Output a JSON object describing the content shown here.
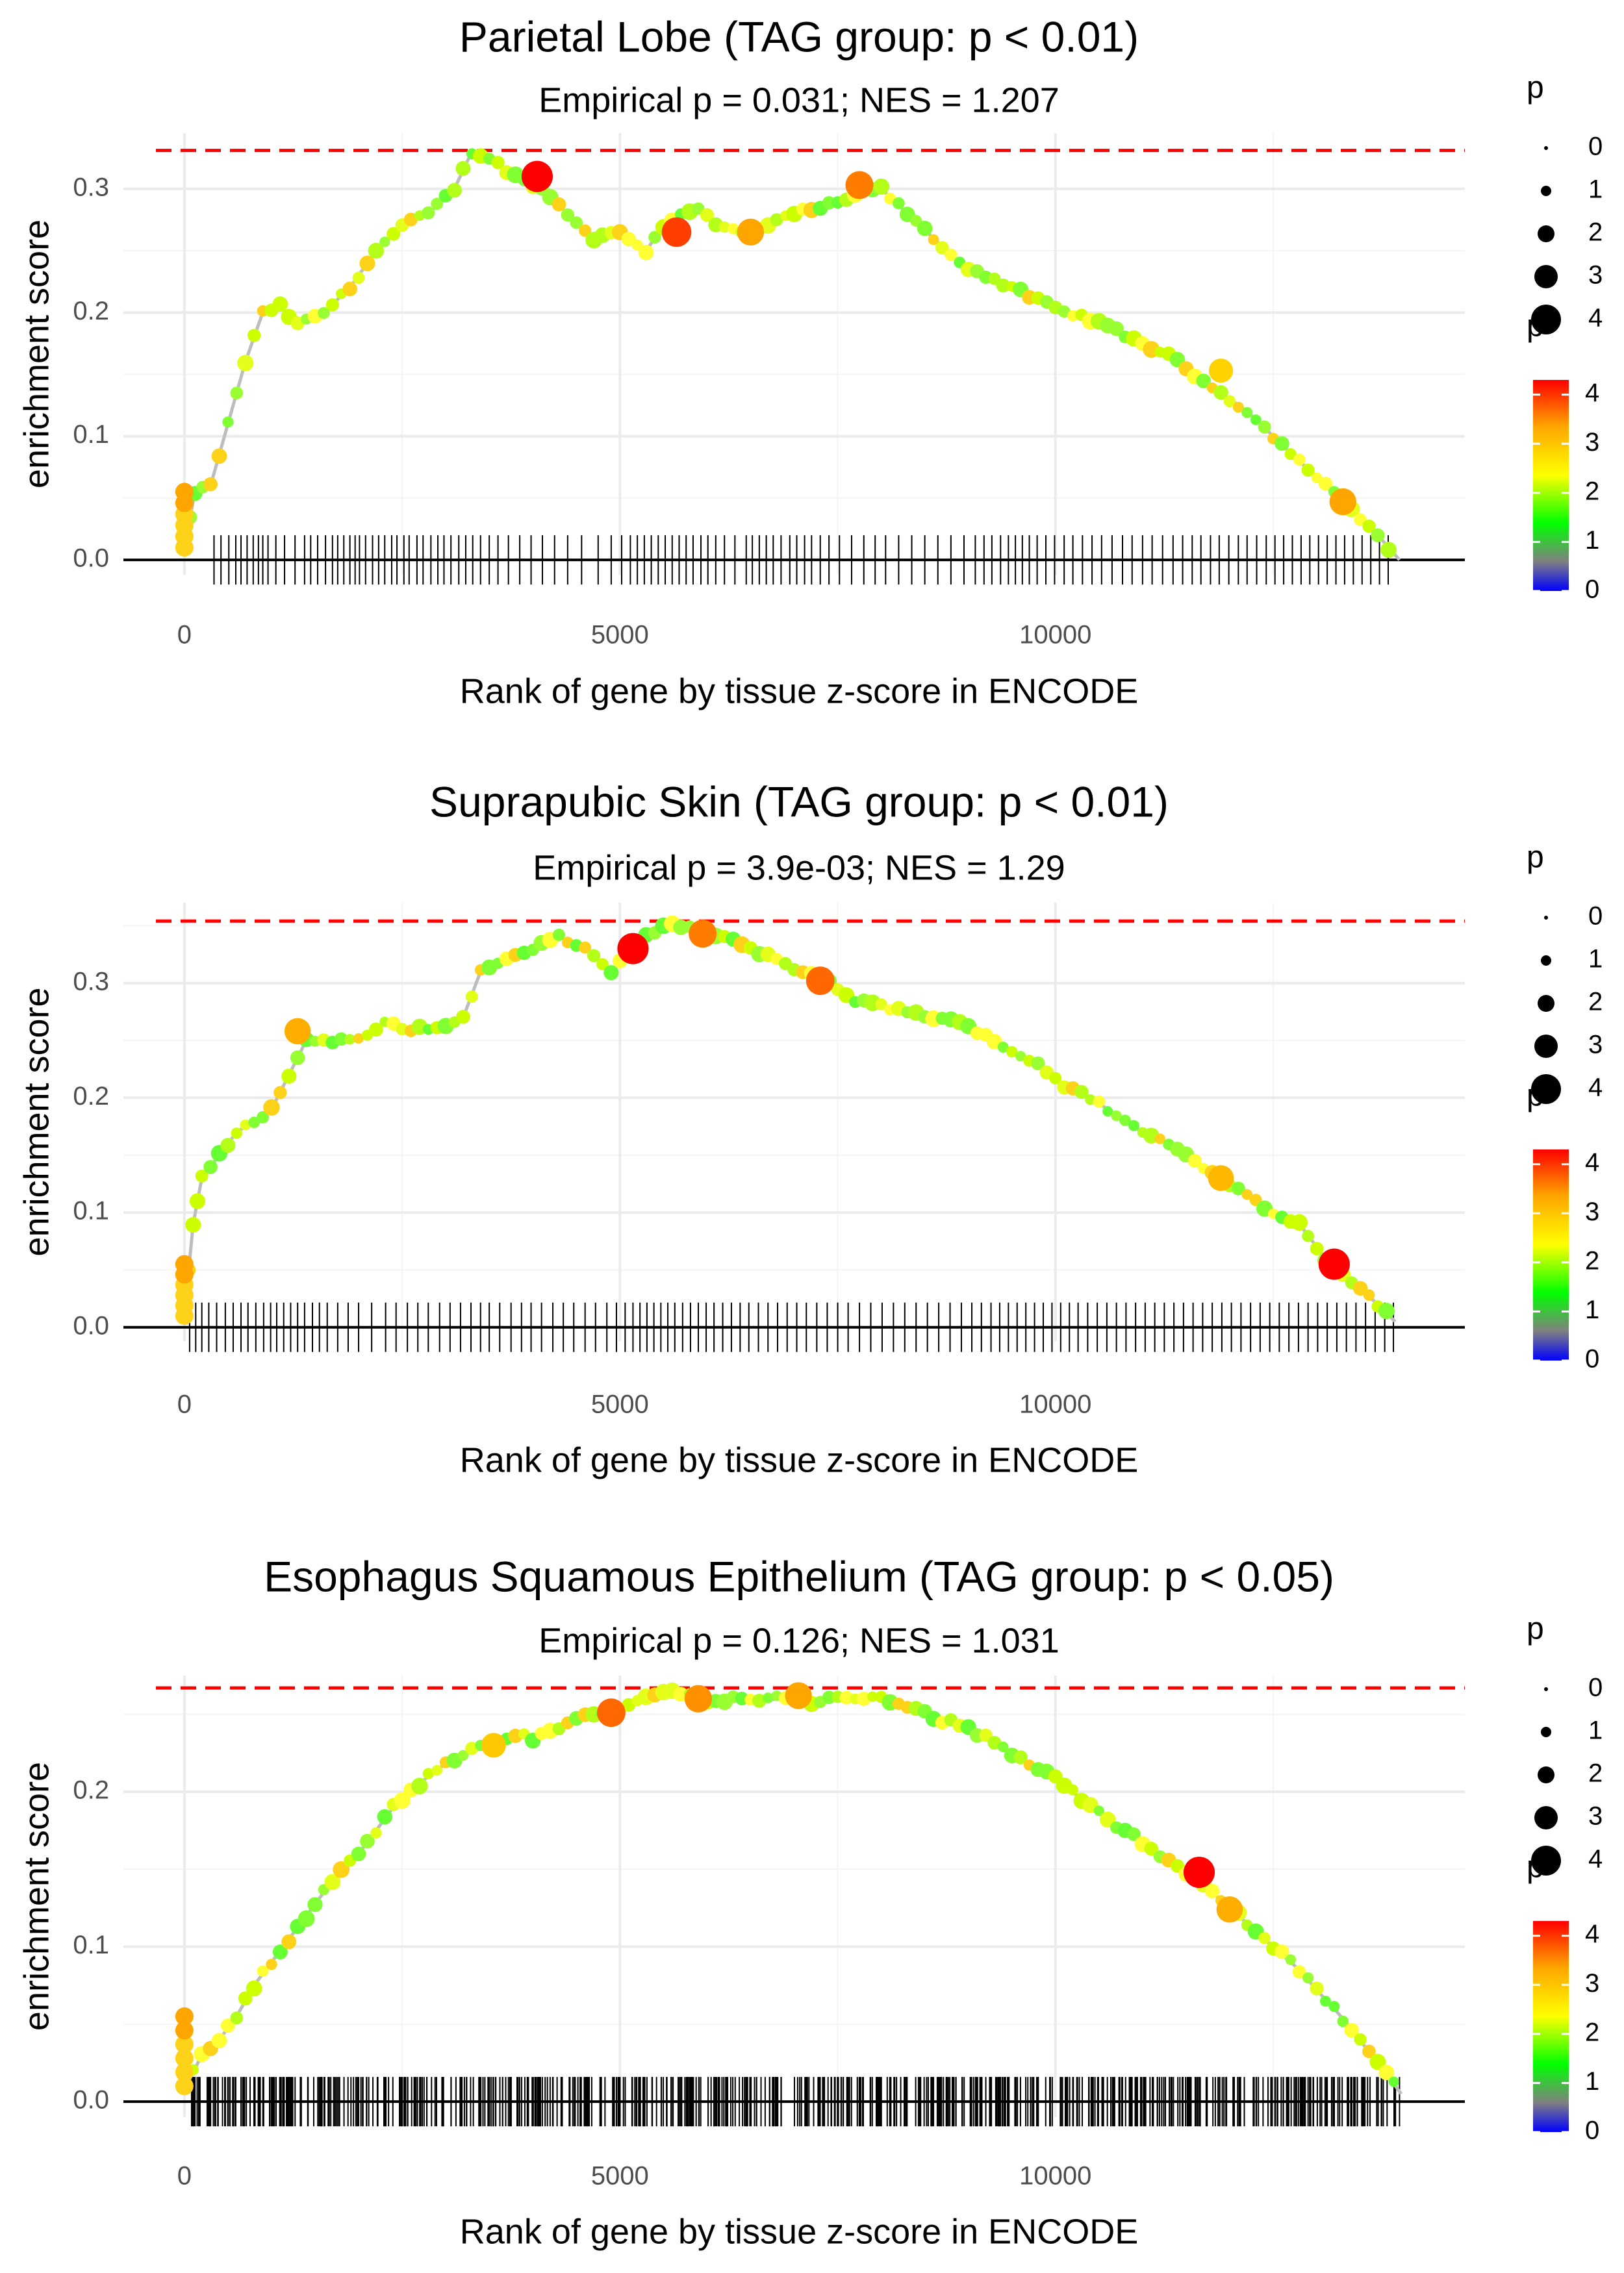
{
  "chart_data": [
    {
      "type": "line",
      "title": "Parietal Lobe (TAG group: p < 0.01)",
      "subtitle": "Empirical p = 0.031; NES = 1.207",
      "xlabel": "Rank of gene by tissue z-score in ENCODE",
      "ylabel": "enrichment score",
      "xlim": [
        -700,
        14700
      ],
      "ylim": [
        -0.012,
        0.345
      ],
      "x_ticks": [
        0,
        5000,
        10000
      ],
      "x_tick_labels": [
        "0",
        "5000",
        "10000"
      ],
      "y_ticks": [
        0.0,
        0.1,
        0.2,
        0.3
      ],
      "y_tick_labels": [
        "0.0",
        "0.1",
        "0.2",
        "0.3"
      ],
      "max_es_dashed_line": 0.331,
      "curve_x": [
        0,
        120,
        300,
        500,
        700,
        900,
        1100,
        1300,
        1600,
        1900,
        2200,
        2500,
        2800,
        3100,
        3300,
        3500,
        3800,
        4100,
        4400,
        4700,
        5000,
        5300,
        5500,
        5700,
        5900,
        6100,
        6400,
        6700,
        7000,
        7300,
        7600,
        7800,
        8000,
        8300,
        8600,
        8900,
        9200,
        9500,
        9800,
        10100,
        10400,
        10700,
        11000,
        11300,
        11600,
        11900,
        12200,
        12500,
        12800,
        13100,
        13400,
        13700,
        13950
      ],
      "curve_y": [
        0.01,
        0.055,
        0.06,
        0.11,
        0.16,
        0.2,
        0.205,
        0.19,
        0.2,
        0.22,
        0.25,
        0.27,
        0.28,
        0.3,
        0.33,
        0.325,
        0.31,
        0.3,
        0.28,
        0.26,
        0.265,
        0.25,
        0.27,
        0.28,
        0.285,
        0.27,
        0.265,
        0.27,
        0.28,
        0.285,
        0.29,
        0.3,
        0.3,
        0.28,
        0.26,
        0.24,
        0.23,
        0.22,
        0.21,
        0.2,
        0.195,
        0.185,
        0.175,
        0.165,
        0.15,
        0.135,
        0.12,
        0.1,
        0.08,
        0.06,
        0.04,
        0.02,
        0.0
      ],
      "highlights": [
        {
          "x": 4050,
          "y": 0.31,
          "p": 4.3
        },
        {
          "x": 5650,
          "y": 0.265,
          "p": 4.0
        },
        {
          "x": 7750,
          "y": 0.303,
          "p": 3.7
        },
        {
          "x": 6500,
          "y": 0.265,
          "p": 3.5
        },
        {
          "x": 13300,
          "y": 0.047,
          "p": 3.5
        },
        {
          "x": 11900,
          "y": 0.153,
          "p": 3.0
        }
      ],
      "rug_x": [
        340,
        420,
        510,
        590,
        650,
        720,
        790,
        850,
        900,
        960,
        1050,
        1150,
        1270,
        1380,
        1450,
        1530,
        1620,
        1700,
        1760,
        1830,
        1900,
        1960,
        2010,
        2080,
        2160,
        2230,
        2300,
        2380,
        2440,
        2520,
        2580,
        2670,
        2740,
        2830,
        2910,
        2980,
        3060,
        3150,
        3230,
        3310,
        3400,
        3500,
        3600,
        3720,
        3850,
        3980,
        4110,
        4250,
        4400,
        4560,
        4750,
        4900,
        5020,
        5120,
        5200,
        5280,
        5360,
        5440,
        5520,
        5600,
        5680,
        5760,
        5840,
        5930,
        6010,
        6100,
        6200,
        6320,
        6450,
        6520,
        6600,
        6680,
        6760,
        6850,
        6950,
        7030,
        7120,
        7200,
        7300,
        7400,
        7520,
        7660,
        7800,
        7930,
        8050,
        8200,
        8350,
        8500,
        8650,
        8800,
        8950,
        9080,
        9180,
        9270,
        9370,
        9460,
        9540,
        9620,
        9700,
        9790,
        9890,
        9990,
        10100,
        10200,
        10310,
        10420,
        10530,
        10650,
        10770,
        10880,
        11000,
        11110,
        11230,
        11350,
        11460,
        11570,
        11670,
        11780,
        11880,
        11990,
        12100,
        12200,
        12310,
        12420,
        12520,
        12620,
        12720,
        12820,
        12920,
        13020,
        13120,
        13220,
        13320,
        13420,
        13520,
        13620,
        13720,
        13820
      ],
      "point_colors": [
        "#ffff33",
        "#ffd21a",
        "#e3ff1a",
        "#ccff00",
        "#b3ff1a",
        "#99ff33",
        "#80ff33",
        "#66ff33"
      ]
    },
    {
      "type": "line",
      "title": "Suprapubic Skin (TAG group: p < 0.01)",
      "subtitle": "Empirical p = 3.9e-03; NES = 1.29",
      "xlabel": "Rank of gene by tissue z-score in ENCODE",
      "ylabel": "enrichment score",
      "xlim": [
        -700,
        14700
      ],
      "ylim": [
        -0.012,
        0.37
      ],
      "x_ticks": [
        0,
        5000,
        10000
      ],
      "x_tick_labels": [
        "0",
        "5000",
        "10000"
      ],
      "y_ticks": [
        0.0,
        0.1,
        0.2,
        0.3
      ],
      "y_tick_labels": [
        "0.0",
        "0.1",
        "0.2",
        "0.3"
      ],
      "max_es_dashed_line": 0.354,
      "curve_x": [
        0,
        100,
        200,
        400,
        600,
        800,
        1000,
        1200,
        1400,
        1700,
        2000,
        2300,
        2600,
        2900,
        3200,
        3400,
        3700,
        4000,
        4300,
        4600,
        4900,
        5100,
        5300,
        5500,
        5700,
        5900,
        6200,
        6500,
        6800,
        7100,
        7400,
        7700,
        8000,
        8300,
        8600,
        8900,
        9200,
        9500,
        9800,
        10100,
        10400,
        10700,
        11000,
        11300,
        11600,
        11900,
        12200,
        12500,
        12800,
        13100,
        13400,
        13700,
        13900
      ],
      "curve_y": [
        0.01,
        0.09,
        0.13,
        0.15,
        0.17,
        0.18,
        0.19,
        0.22,
        0.25,
        0.25,
        0.25,
        0.265,
        0.26,
        0.26,
        0.27,
        0.31,
        0.32,
        0.33,
        0.34,
        0.33,
        0.31,
        0.33,
        0.34,
        0.35,
        0.35,
        0.345,
        0.34,
        0.33,
        0.32,
        0.31,
        0.3,
        0.285,
        0.28,
        0.275,
        0.27,
        0.265,
        0.255,
        0.24,
        0.23,
        0.21,
        0.2,
        0.185,
        0.17,
        0.16,
        0.145,
        0.13,
        0.115,
        0.1,
        0.09,
        0.06,
        0.04,
        0.02,
        0.005
      ],
      "highlights": [
        {
          "x": 5150,
          "y": 0.33,
          "p": 4.3
        },
        {
          "x": 13200,
          "y": 0.055,
          "p": 4.3
        },
        {
          "x": 7300,
          "y": 0.302,
          "p": 3.8
        },
        {
          "x": 5950,
          "y": 0.343,
          "p": 3.7
        },
        {
          "x": 1300,
          "y": 0.258,
          "p": 3.4
        },
        {
          "x": 11900,
          "y": 0.13,
          "p": 3.3
        }
      ],
      "rug_x": [
        60,
        130,
        200,
        280,
        370,
        470,
        560,
        650,
        730,
        820,
        910,
        990,
        1060,
        1140,
        1220,
        1300,
        1380,
        1470,
        1550,
        1640,
        1760,
        1880,
        2000,
        2150,
        2310,
        2430,
        2560,
        2680,
        2800,
        2930,
        3050,
        3170,
        3290,
        3400,
        3500,
        3620,
        3750,
        3870,
        3980,
        4100,
        4230,
        4350,
        4470,
        4600,
        4720,
        4850,
        4960,
        5060,
        5150,
        5230,
        5310,
        5390,
        5470,
        5550,
        5630,
        5720,
        5810,
        5900,
        5990,
        6080,
        6180,
        6280,
        6380,
        6480,
        6590,
        6700,
        6810,
        6920,
        7030,
        7140,
        7260,
        7380,
        7500,
        7620,
        7750,
        7880,
        8010,
        8140,
        8270,
        8400,
        8530,
        8660,
        8790,
        8920,
        9040,
        9150,
        9260,
        9360,
        9460,
        9560,
        9660,
        9760,
        9860,
        9960,
        10060,
        10160,
        10260,
        10370,
        10480,
        10590,
        10700,
        10810,
        10920,
        11030,
        11140,
        11250,
        11360,
        11470,
        11580,
        11690,
        11800,
        11910,
        12020,
        12130,
        12240,
        12350,
        12460,
        12570,
        12680,
        12790,
        12900,
        13010,
        13120,
        13230,
        13340,
        13450,
        13560,
        13670,
        13780,
        13880
      ],
      "point_colors": [
        "#ffff33",
        "#ffd21a",
        "#e3ff1a",
        "#ccff00",
        "#b3ff1a",
        "#99ff33",
        "#80ff33",
        "#66ff33"
      ]
    },
    {
      "type": "line",
      "title": "Esophagus Squamous Epithelium (TAG group: p < 0.05)",
      "subtitle": "Empirical p = 0.126; NES = 1.031",
      "xlabel": "Rank of gene by tissue z-score in ENCODE",
      "ylabel": "enrichment score",
      "xlim": [
        -700,
        14700
      ],
      "ylim": [
        -0.01,
        0.275
      ],
      "x_ticks": [
        0,
        5000,
        10000
      ],
      "x_tick_labels": [
        "0",
        "5000",
        "10000"
      ],
      "y_ticks": [
        0.0,
        0.1,
        0.2
      ],
      "y_tick_labels": [
        "0.0",
        "0.1",
        "0.2"
      ],
      "max_es_dashed_line": 0.267,
      "curve_x": [
        0,
        200,
        400,
        600,
        800,
        1000,
        1200,
        1400,
        1600,
        1800,
        2000,
        2200,
        2400,
        2600,
        2800,
        3000,
        3200,
        3400,
        3600,
        3800,
        4000,
        4200,
        4400,
        4600,
        4800,
        5000,
        5200,
        5400,
        5600,
        5800,
        6000,
        6200,
        6400,
        6600,
        6800,
        7000,
        7200,
        7400,
        7600,
        7800,
        8000,
        8200,
        8400,
        8600,
        8800,
        9000,
        9200,
        9400,
        9600,
        9800,
        10000,
        10200,
        10400,
        10600,
        10800,
        11000,
        11200,
        11400,
        11600,
        11800,
        12000,
        12200,
        12400,
        12600,
        12800,
        13000,
        13200,
        13400,
        13600,
        13800,
        13970
      ],
      "curve_y": [
        0.008,
        0.03,
        0.04,
        0.055,
        0.075,
        0.09,
        0.105,
        0.12,
        0.135,
        0.15,
        0.16,
        0.175,
        0.19,
        0.2,
        0.21,
        0.218,
        0.225,
        0.228,
        0.232,
        0.238,
        0.235,
        0.24,
        0.245,
        0.248,
        0.25,
        0.255,
        0.258,
        0.262,
        0.265,
        0.262,
        0.26,
        0.26,
        0.262,
        0.258,
        0.26,
        0.262,
        0.258,
        0.26,
        0.262,
        0.26,
        0.262,
        0.255,
        0.252,
        0.248,
        0.245,
        0.24,
        0.235,
        0.228,
        0.222,
        0.215,
        0.21,
        0.2,
        0.19,
        0.182,
        0.175,
        0.168,
        0.16,
        0.152,
        0.145,
        0.135,
        0.125,
        0.115,
        0.105,
        0.095,
        0.085,
        0.072,
        0.06,
        0.047,
        0.032,
        0.018,
        0.005
      ],
      "highlights": [
        {
          "x": 11650,
          "y": 0.148,
          "p": 4.3
        },
        {
          "x": 4900,
          "y": 0.251,
          "p": 3.8
        },
        {
          "x": 5900,
          "y": 0.26,
          "p": 3.6
        },
        {
          "x": 7050,
          "y": 0.262,
          "p": 3.5
        },
        {
          "x": 12000,
          "y": 0.124,
          "p": 3.4
        },
        {
          "x": 3550,
          "y": 0.23,
          "p": 3.1
        }
      ],
      "rug_density": 700,
      "rug_x": [],
      "point_colors": [
        "#ffff33",
        "#ffd21a",
        "#e3ff1a",
        "#ccff00",
        "#b3ff1a",
        "#99ff33",
        "#80ff33",
        "#66ff33"
      ]
    }
  ],
  "legends": {
    "size_title": "p",
    "size_labels": [
      "0",
      "1",
      "2",
      "3",
      "4"
    ],
    "color_title": "p",
    "color_labels": [
      "4",
      "3",
      "2",
      "1",
      "0"
    ],
    "color_stops": [
      "#ff0000",
      "#ffa500",
      "#ffff00",
      "#00ff00",
      "#808080",
      "#0000ff"
    ]
  },
  "colors": {
    "curve": "#bdbdbd",
    "dashed": "#ff0000",
    "rug": "#000000",
    "zero_line": "#000000",
    "max_point": "#e31a1c"
  }
}
